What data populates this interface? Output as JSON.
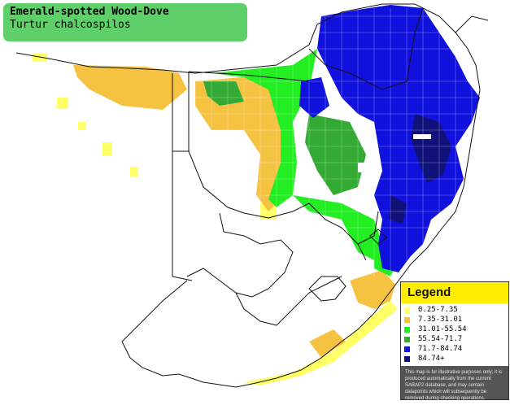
{
  "title": {
    "common_name": "Emerald-spotted Wood-Dove",
    "scientific_name": "Turtur chalcospilos"
  },
  "legend": {
    "heading": "Legend",
    "items": [
      {
        "label": "0.25-7.35",
        "color": "#ffff66"
      },
      {
        "label": "7.35-31.01",
        "color": "#f5c242"
      },
      {
        "label": "31.01-55.54",
        "color": "#22ee22"
      },
      {
        "label": "55.54-71.7",
        "color": "#33aa33"
      },
      {
        "label": "71.7-84.74",
        "color": "#1111dd"
      },
      {
        "label": "84.74+",
        "color": "#11117a"
      }
    ],
    "disclaimer": "This map is for illustrative purposes only; it is produced automatically from the current SABAP2 database, and may contain datapoints which will subsequently be removed during checking operations."
  },
  "map_colors": {
    "land": "#ffffff",
    "border": "#111111",
    "grid": "#ffffff"
  }
}
